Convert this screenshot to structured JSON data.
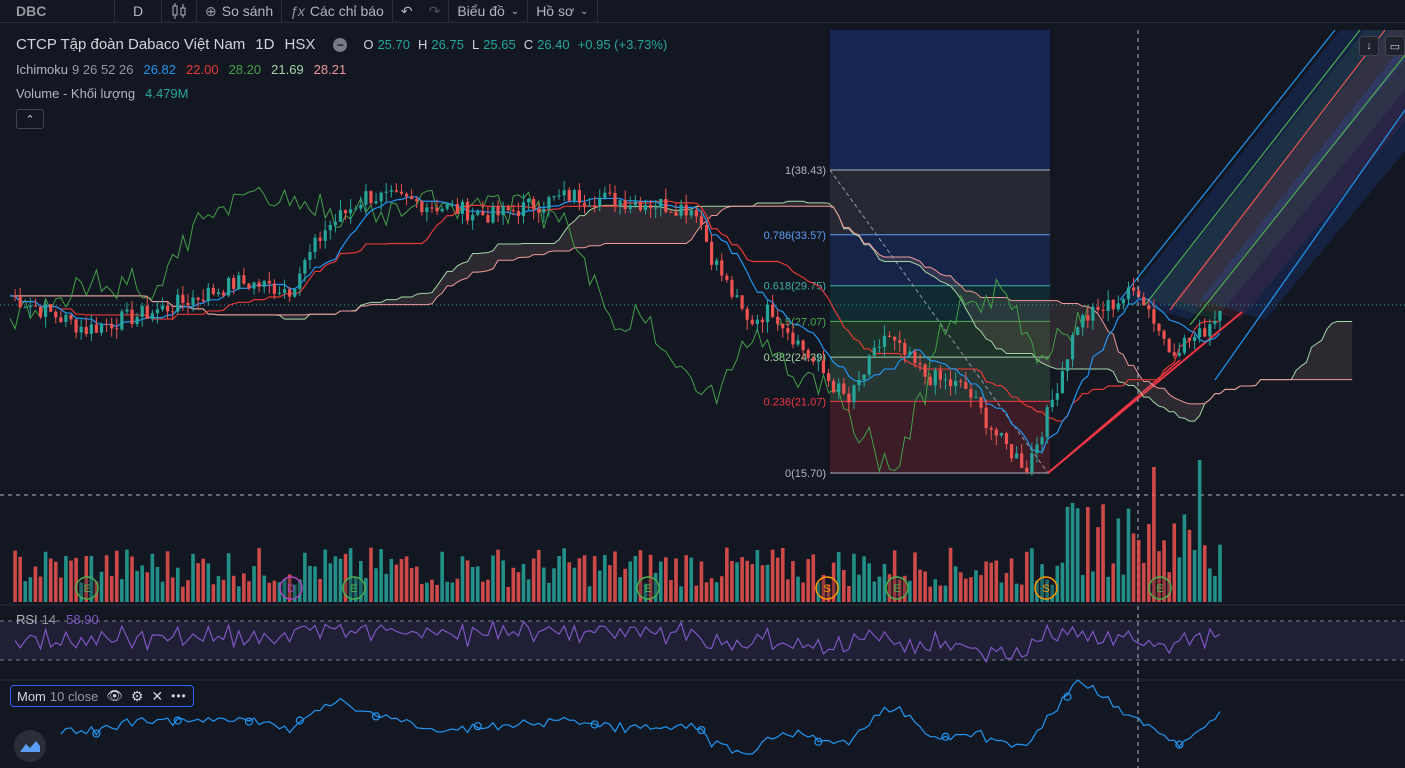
{
  "toolbar": {
    "symbol": "DBC",
    "interval": "D",
    "compare": "So sánh",
    "indicators": "Các chỉ báo",
    "chart_menu": "Biểu đồ",
    "profile_menu": "Hồ sơ"
  },
  "legend": {
    "title": "CTCP Tập đoàn Dabaco Việt Nam",
    "interval": "1D",
    "exchange": "HSX",
    "open_label": "O",
    "open": "25.70",
    "high_label": "H",
    "high": "26.75",
    "low_label": "L",
    "low": "25.65",
    "close_label": "C",
    "close": "26.40",
    "change": "+0.95 (+3.73%)"
  },
  "ichimoku": {
    "label": "Ichimoku",
    "params": "9 26 52 26",
    "v1": "26.82",
    "v2": "22.00",
    "v3": "28.20",
    "v4": "21.69",
    "v5": "28.21"
  },
  "volume": {
    "label": "Volume - Khối lượng",
    "value": "4.479M"
  },
  "fib": {
    "levels": [
      {
        "label": "1(38.43)",
        "price": 38.43,
        "color": "#b2b5be"
      },
      {
        "label": "0.786(33.57)",
        "price": 33.57,
        "color": "#5b9cf6"
      },
      {
        "label": "0.618(29.75)",
        "price": 29.75,
        "color": "#3fb0a6"
      },
      {
        "label": "0.5(27.07)",
        "price": 27.07,
        "color": "#4caf50"
      },
      {
        "label": "0.382(24.39)",
        "price": 24.39,
        "color": "#a5d6a7"
      },
      {
        "label": "0.236(21.07)",
        "price": 21.07,
        "color": "#f23645"
      },
      {
        "label": "0(15.70)",
        "price": 15.7,
        "color": "#b2b5be"
      }
    ]
  },
  "rsi": {
    "label": "RSI",
    "param": "14",
    "value": "58.90"
  },
  "mom": {
    "label": "Mom",
    "params": "10 close"
  },
  "events": [
    "E",
    "D",
    "E",
    "E",
    "S",
    "E",
    "S",
    "E"
  ],
  "colors": {
    "up": "#26a69a",
    "down": "#ef5350",
    "tenkan": "#2196f3",
    "kijun": "#e53935",
    "lead": "#43a047",
    "rsi": "#7e57c2",
    "mom": "#2196f3"
  }
}
